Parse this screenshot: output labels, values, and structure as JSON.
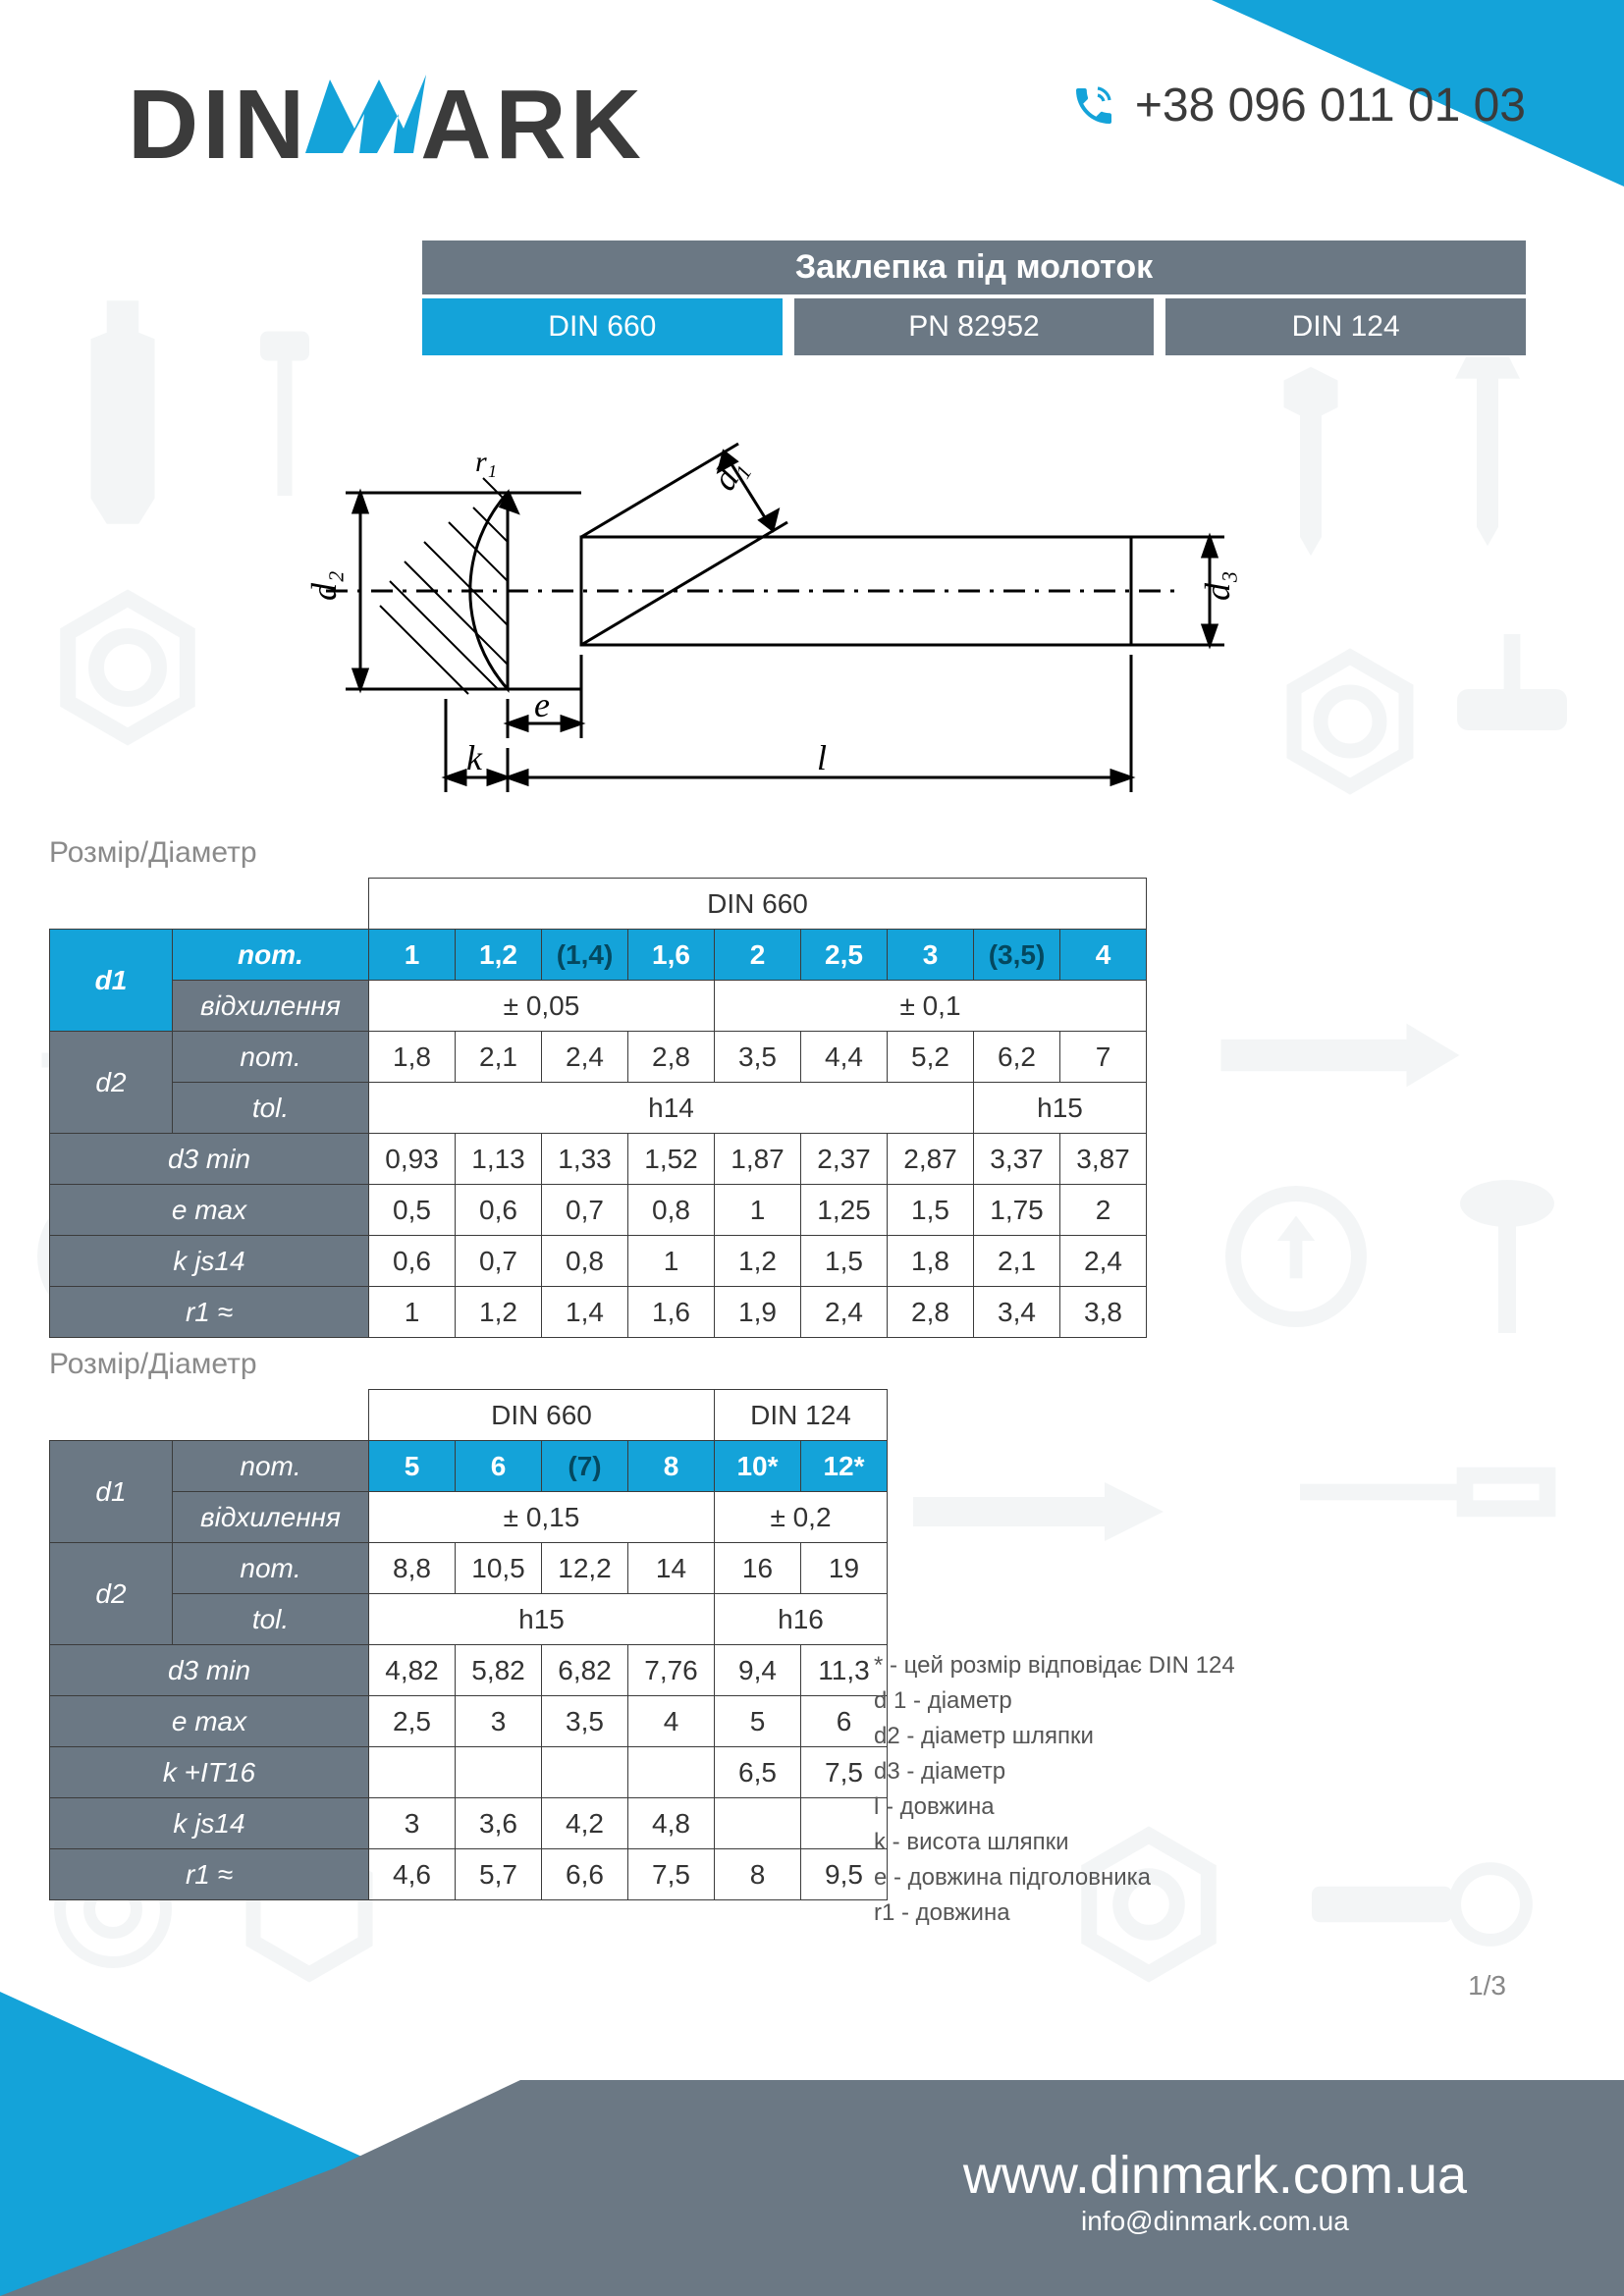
{
  "colors": {
    "accent": "#14a3d9",
    "header_gray": "#6b7884",
    "text_dark": "#3b3b3b",
    "bg_icon": "#78909c",
    "bg_white": "#ffffff"
  },
  "logo": {
    "pre": "DIN",
    "post": "ARK"
  },
  "phone": "+38 096 011 01 03",
  "title": "Заклепка під молоток",
  "standards": [
    "DIN 660",
    "PN 82952",
    "DIN 124"
  ],
  "active_std_index": 0,
  "diagram": {
    "labels": {
      "d1": "d₁",
      "d2": "d₂",
      "d3": "d₃",
      "e": "e",
      "k": "k",
      "l": "l",
      "r1": "r₁"
    }
  },
  "section_label": "Розмір/Діаметр",
  "table1": {
    "header_span": "DIN 660",
    "row_label_1": "d1",
    "row_label_2": "d2",
    "nom_label": "nom.",
    "dev_label": "відхилення",
    "tol_label": "tol.",
    "rows": {
      "d1_nom": [
        "1",
        "1,2",
        "(1,4)",
        "1,6",
        "2",
        "2,5",
        "3",
        "(3,5)",
        "4"
      ],
      "d1_dev": [
        {
          "span": 4,
          "val": "± 0,05"
        },
        {
          "span": 5,
          "val": "± 0,1"
        }
      ],
      "d2_nom": [
        "1,8",
        "2,1",
        "2,4",
        "2,8",
        "3,5",
        "4,4",
        "5,2",
        "6,2",
        "7"
      ],
      "d2_tol": [
        {
          "span": 7,
          "val": "h14"
        },
        {
          "span": 2,
          "val": "h15"
        }
      ],
      "d3_min": {
        "label": "d3 min",
        "vals": [
          "0,93",
          "1,13",
          "1,33",
          "1,52",
          "1,87",
          "2,37",
          "2,87",
          "3,37",
          "3,87"
        ]
      },
      "e_max": {
        "label": "e max",
        "vals": [
          "0,5",
          "0,6",
          "0,7",
          "0,8",
          "1",
          "1,25",
          "1,5",
          "1,75",
          "2"
        ]
      },
      "k_js14": {
        "label": "k js14",
        "vals": [
          "0,6",
          "0,7",
          "0,8",
          "1",
          "1,2",
          "1,5",
          "1,8",
          "2,1",
          "2,4"
        ]
      },
      "r1": {
        "label": "r1 ≈",
        "vals": [
          "1",
          "1,2",
          "1,4",
          "1,6",
          "1,9",
          "2,4",
          "2,8",
          "3,4",
          "3,8"
        ]
      }
    }
  },
  "table2": {
    "header_spans": [
      "DIN 660",
      "DIN 124"
    ],
    "header_span_widths": [
      4,
      2
    ],
    "rows": {
      "d1_nom": [
        "5",
        "6",
        "(7)",
        "8",
        "10*",
        "12*"
      ],
      "d1_dev": [
        {
          "span": 4,
          "val": "± 0,15"
        },
        {
          "span": 2,
          "val": "± 0,2"
        }
      ],
      "d2_nom": [
        "8,8",
        "10,5",
        "12,2",
        "14",
        "16",
        "19"
      ],
      "d2_tol": [
        {
          "span": 4,
          "val": "h15"
        },
        {
          "span": 2,
          "val": "h16"
        }
      ],
      "d3_min": {
        "label": "d3 min",
        "vals": [
          "4,82",
          "5,82",
          "6,82",
          "7,76",
          "9,4",
          "11,3"
        ]
      },
      "e_max": {
        "label": "e max",
        "vals": [
          "2,5",
          "3",
          "3,5",
          "4",
          "5",
          "6"
        ]
      },
      "k_it16": {
        "label": "k +IT16",
        "vals": [
          "",
          "",
          "",
          "",
          "6,5",
          "7,5"
        ]
      },
      "k_js14": {
        "label": "k js14",
        "vals": [
          "3",
          "3,6",
          "4,2",
          "4,8",
          "",
          ""
        ]
      },
      "r1": {
        "label": "r1 ≈",
        "vals": [
          "4,6",
          "5,7",
          "6,6",
          "7,5",
          "8",
          "9,5"
        ]
      }
    }
  },
  "legend": [
    "* - цей розмір відповідає DIN 124",
    "d 1 -  діаметр",
    "d2 - діаметр шляпки",
    "d3 - діаметр",
    "l - довжина",
    "k - висота шляпки",
    "e - довжина підголовника",
    "r1 - довжина"
  ],
  "page_num": "1/3",
  "footer": {
    "url": "www.dinmark.com.ua",
    "email": "info@dinmark.com.ua"
  }
}
